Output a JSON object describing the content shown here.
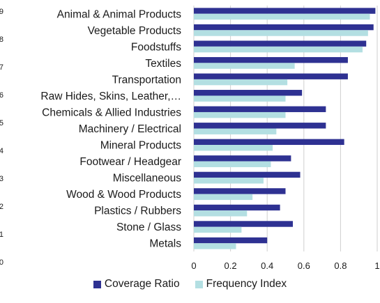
{
  "chart_data": {
    "type": "bar",
    "orientation": "horizontal",
    "categories": [
      "Animal & Animal Products",
      "Vegetable Products",
      "Foodstuffs",
      "Textiles",
      "Transportation",
      "Raw Hides, Skins, Leather,…",
      "Chemicals & Allied Industries",
      "Machinery / Electrical",
      "Mineral Products",
      "Footwear / Headgear",
      "Miscellaneous",
      "Wood & Wood Products",
      "Plastics / Rubbers",
      "Stone / Glass",
      "Metals"
    ],
    "series": [
      {
        "name": "Coverage Ratio",
        "color": "#2e3192",
        "values": [
          0.99,
          0.98,
          0.94,
          0.84,
          0.84,
          0.59,
          0.72,
          0.72,
          0.82,
          0.53,
          0.58,
          0.5,
          0.47,
          0.54,
          0.4
        ]
      },
      {
        "name": "Frequency Index",
        "color": "#b3dfe2",
        "values": [
          0.96,
          0.95,
          0.92,
          0.55,
          0.51,
          0.5,
          0.5,
          0.45,
          0.43,
          0.42,
          0.38,
          0.32,
          0.29,
          0.26,
          0.23
        ]
      }
    ],
    "xlim": [
      0,
      1
    ],
    "xticks": [
      "0",
      "0.2",
      "0.4",
      "0.6",
      "0.8",
      "1"
    ],
    "left_edge_labels": [
      "9",
      "8",
      "7",
      "6",
      "5",
      "4",
      "3",
      "2",
      "1",
      "0"
    ],
    "grid": "vertical",
    "legend_position": "bottom"
  }
}
